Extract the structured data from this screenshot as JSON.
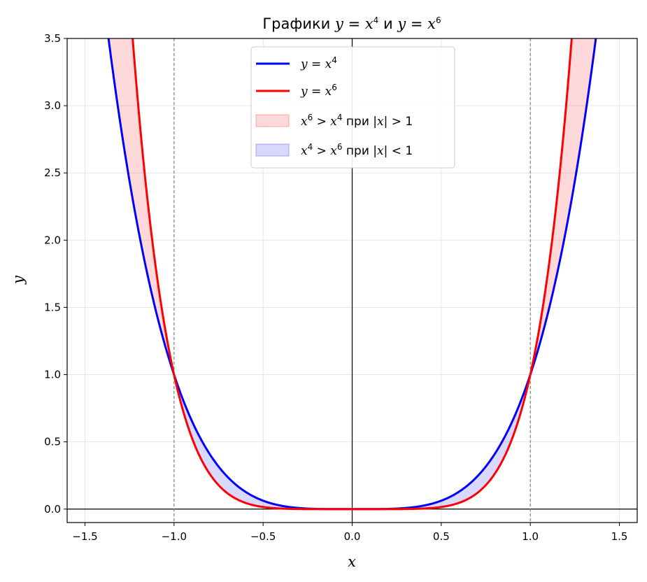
{
  "chart_data": {
    "type": "line",
    "title": "Графики y = x⁴ и y = x⁶",
    "xlabel": "x",
    "ylabel": "y",
    "xlim": [
      -1.6,
      1.6
    ],
    "ylim": [
      -0.1,
      3.5
    ],
    "x_ticks": [
      -1.5,
      -1.0,
      -0.5,
      0.0,
      0.5,
      1.0,
      1.5
    ],
    "x_tick_labels": [
      "−1.5",
      "−1.0",
      "−0.5",
      "0.0",
      "0.5",
      "1.0",
      "1.5"
    ],
    "y_ticks": [
      0.0,
      0.5,
      1.0,
      1.5,
      2.0,
      2.5,
      3.0,
      3.5
    ],
    "y_tick_labels": [
      "0.0",
      "0.5",
      "1.0",
      "1.5",
      "2.0",
      "2.5",
      "3.0",
      "3.5"
    ],
    "grid": true,
    "legend_position": "top-center",
    "series": [
      {
        "name": "y = x⁴",
        "function": "x^4",
        "color": "#0000ff"
      },
      {
        "name": "y = x⁶",
        "function": "x^6",
        "color": "#ff0000"
      }
    ],
    "fills": [
      {
        "name": "x⁶ > x⁴ при |x| > 1",
        "region": "|x| > 1",
        "color": "#ff0000",
        "alpha": 0.15
      },
      {
        "name": "x⁴ > x⁶ при |x| < 1",
        "region": "|x| < 1",
        "color": "#0000ff",
        "alpha": 0.15
      }
    ],
    "vertical_lines": [
      -1,
      1
    ],
    "intersection_points": [
      [
        -1,
        1
      ],
      [
        0,
        0
      ],
      [
        1,
        1
      ]
    ]
  }
}
